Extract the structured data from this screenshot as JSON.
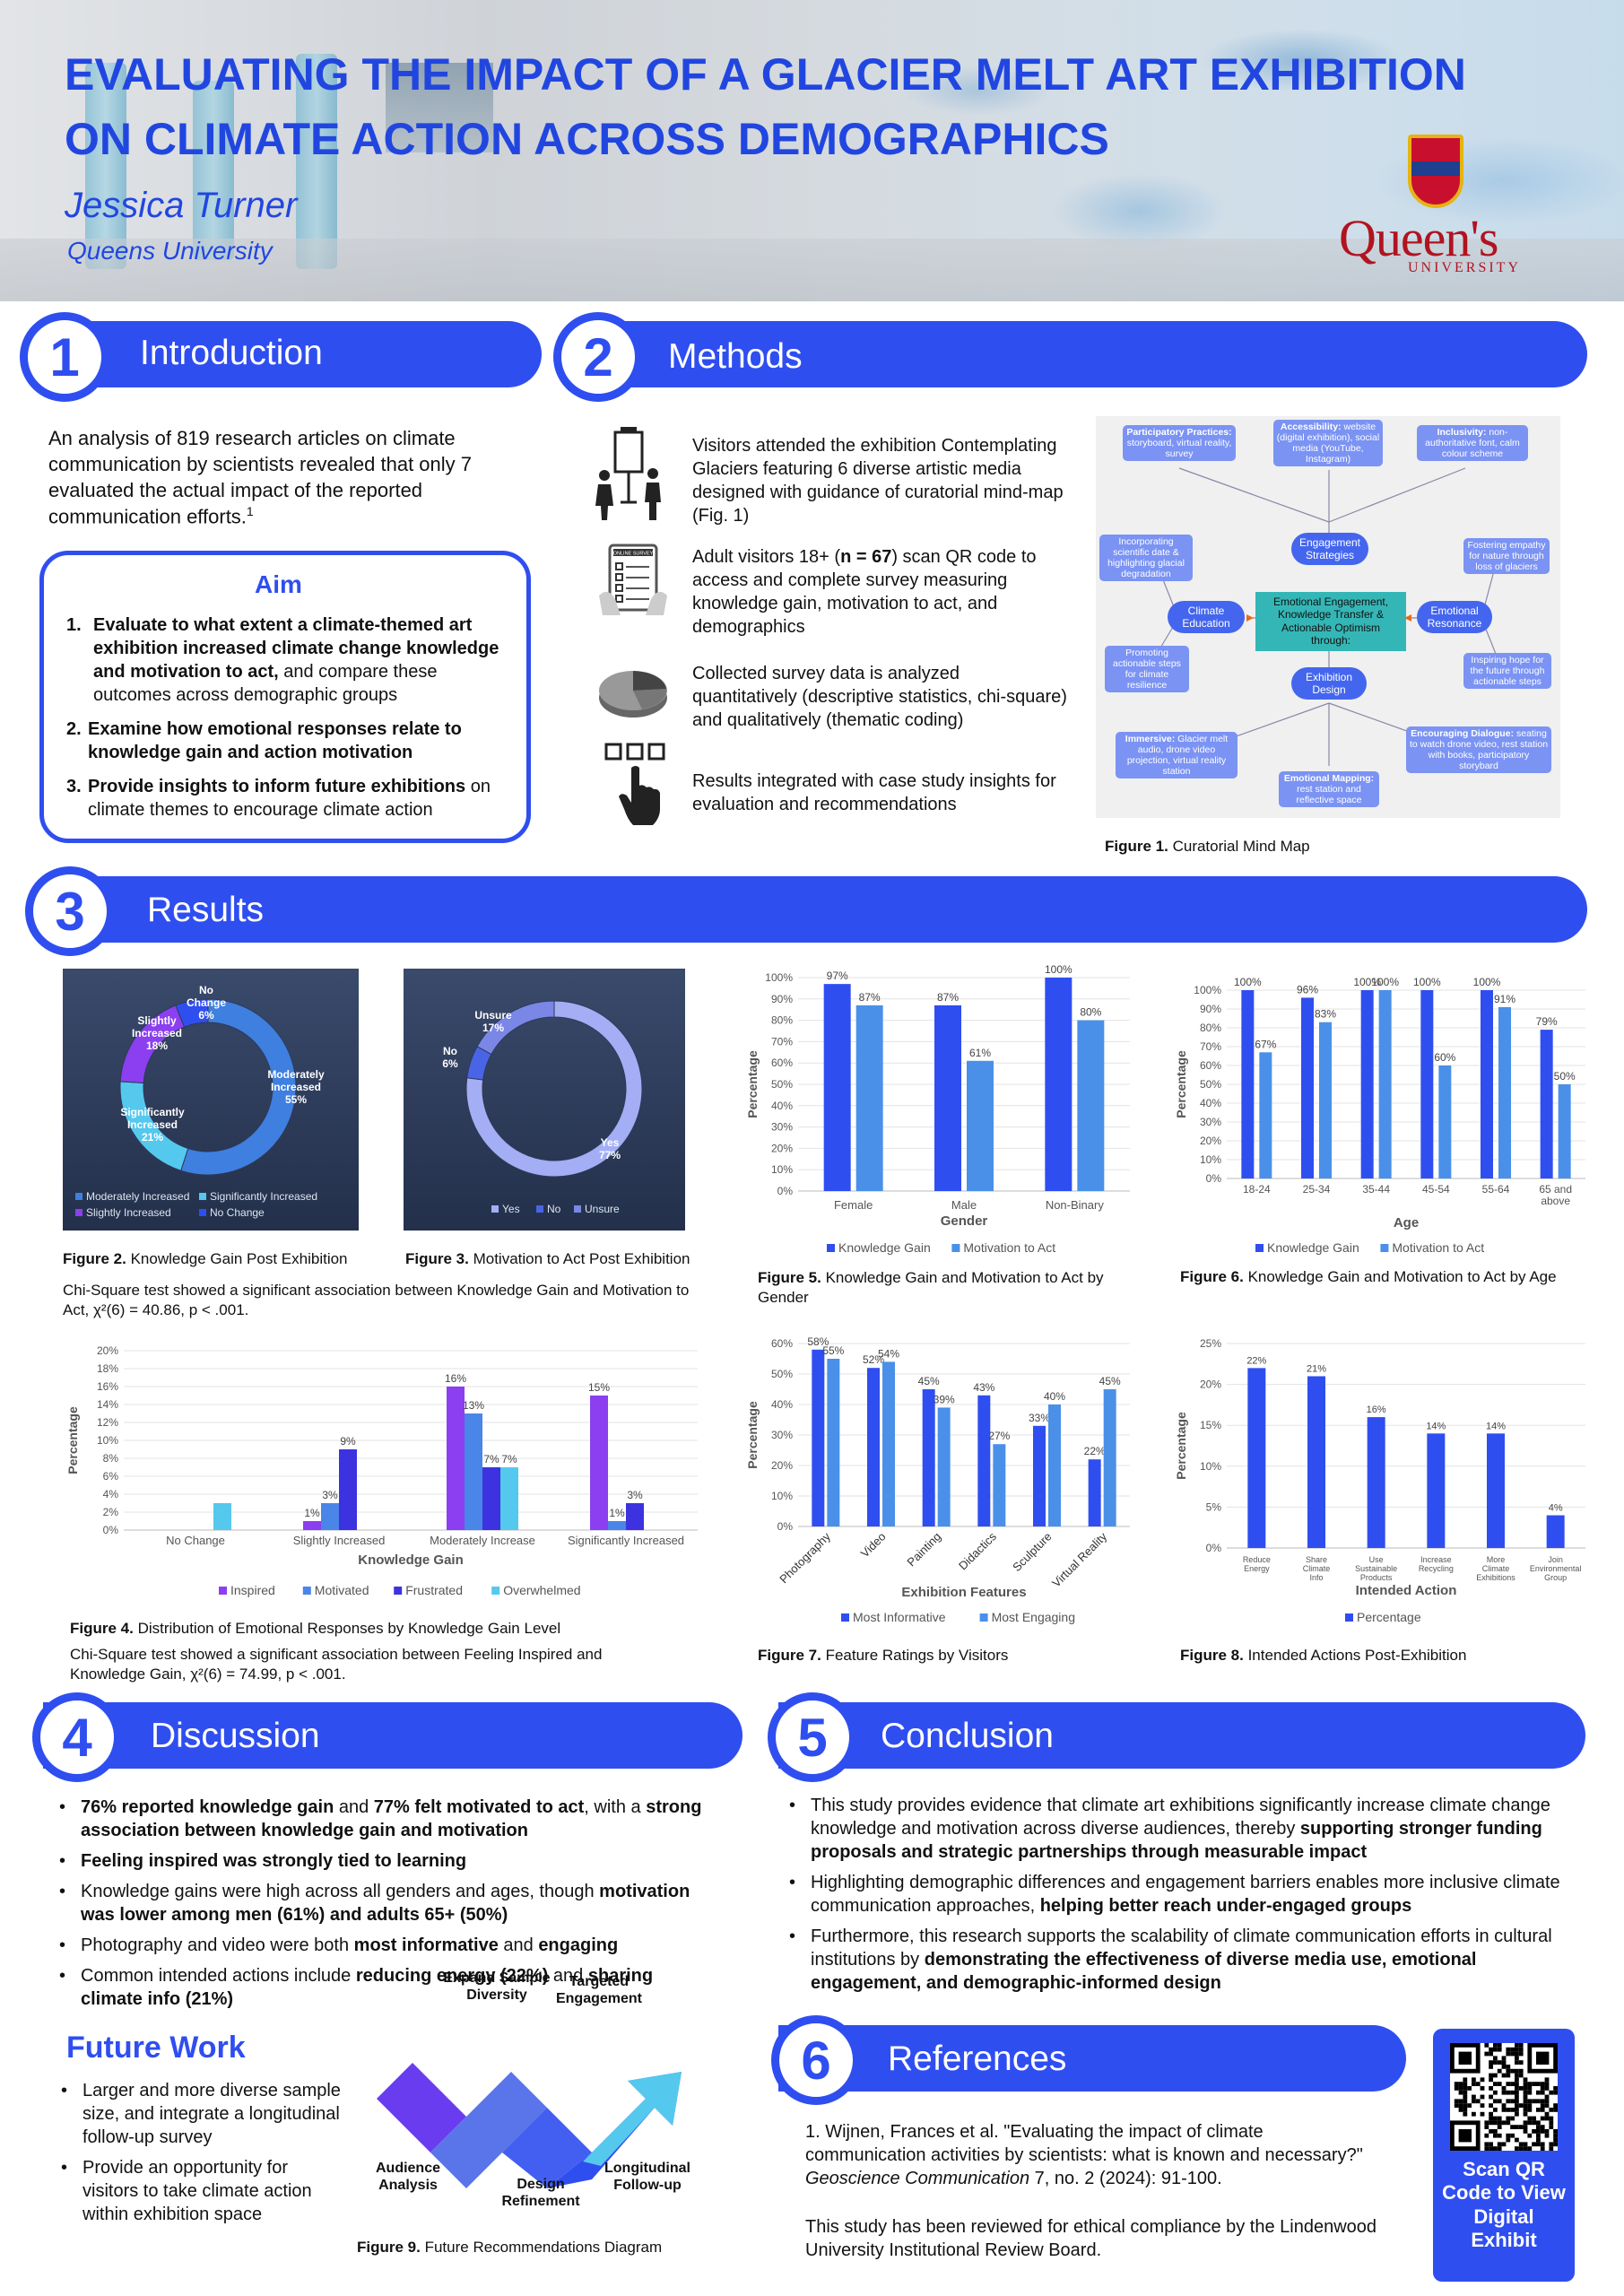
{
  "header": {
    "title_line1": "EVALUATING THE IMPACT OF A GLACIER MELT ART EXHIBITION",
    "title_line2": "ON CLIMATE ACTION ACROSS DEMOGRAPHICS",
    "author": "Jessica Turner",
    "affiliation": "Queens University",
    "logo_text": "Queen's",
    "logo_sub": "UNIVERSITY"
  },
  "sections": {
    "s1": {
      "num": "1",
      "label": "Introduction"
    },
    "s2": {
      "num": "2",
      "label": "Methods"
    },
    "s3": {
      "num": "3",
      "label": "Results"
    },
    "s4": {
      "num": "4",
      "label": "Discussion"
    },
    "s5": {
      "num": "5",
      "label": "Conclusion"
    },
    "s6": {
      "num": "6",
      "label": "References"
    }
  },
  "intro": {
    "text": "An analysis of 819 research articles on climate communication by scientists revealed that only 7 evaluated the actual impact of the reported communication efforts.",
    "sup": "1",
    "aim_title": "Aim",
    "aims": [
      {
        "n": "1.",
        "bold": "Evaluate to what extent a climate-themed art exhibition increased climate change knowledge and motivation to act,",
        "rest": " and compare these outcomes across demographic groups"
      },
      {
        "n": "2.",
        "bold": "Examine how emotional responses relate to knowledge gain and action motivation",
        "rest": ""
      },
      {
        "n": "3.",
        "bold": "Provide insights to inform future exhibitions",
        "rest": " on climate themes to encourage climate action"
      }
    ]
  },
  "methods": {
    "steps": [
      {
        "icon": "exhibition-visitors-icon",
        "text": "Visitors attended the exhibition Contemplating Glaciers featuring 6 diverse artistic media designed with guidance of curatorial mind-map (Fig. 1)"
      },
      {
        "icon": "online-survey-icon",
        "pre": "Adult visitors 18+ (",
        "bold": "n = 67",
        "post": ") scan QR code to access and complete survey measuring knowledge gain, motivation to act, and demographics",
        "survey_label": "ONLINE SURVEY"
      },
      {
        "icon": "pie-analysis-icon",
        "text": "Collected survey data is analyzed quantitatively (descriptive statistics, chi-square) and qualitatively (thematic coding)"
      },
      {
        "icon": "hand-pointer-icon",
        "text": "Results integrated with case study insights for evaluation and recommendations"
      }
    ],
    "fig1_num": "Figure 1.",
    "fig1_cap": " Curatorial Mind Map",
    "mindmap": {
      "center": "Emotional Engagement, Knowledge Transfer & Actionable Optimism through:",
      "engagement": "Engagement Strategies",
      "education": "Climate Education",
      "resonance": "Emotional Resonance",
      "design": "Exhibition Design",
      "participatory_t": "Participatory Practices:",
      "participatory": "storyboard, virtual reality, survey",
      "accessibility_t": "Accessibility:",
      "accessibility": "website (digital exhibition), social media (YouTube, Instagram)",
      "inclusivity_t": "Inclusivity:",
      "inclusivity": "non-authoritative font, calm colour scheme",
      "incorporating": "Incorporating scientific date & highlighting glacial degradation",
      "promoting": "Promoting actionable steps for climate resilience",
      "fostering": "Fostering empathy for nature through loss of glaciers",
      "inspiring": "Inspiring hope for the future through actionable steps",
      "immersive_t": "Immersive:",
      "immersive": "Glacier melt audio, drone video projection, virtual reality station",
      "mapping_t": "Emotional Mapping:",
      "mapping": "rest station and reflective space",
      "dialogue_t": "Encouraging Dialogue:",
      "dialogue": "seating to watch drone video, rest station with books, participatory storybard"
    }
  },
  "results": {
    "fig2": {
      "num": "Figure 2.",
      "cap": " Knowledge Gain Post Exhibition"
    },
    "fig3": {
      "num": "Figure 3.",
      "cap": " Motivation to Act Post Exhibition"
    },
    "chi1": "Chi-Square test showed a significant association between Knowledge Gain and Motivation to Act, χ²(6) = 40.86, p < .001.",
    "fig4": {
      "num": "Figure 4.",
      "cap": " Distribution of Emotional Responses by Knowledge Gain Level"
    },
    "chi2": "Chi-Square test showed a significant association between Feeling Inspired and Knowledge Gain, χ²(6) = 74.99, p < .001.",
    "fig5": {
      "num": "Figure 5.",
      "cap": " Knowledge Gain and Motivation to Act by Gender"
    },
    "fig6": {
      "num": "Figure 6.",
      "cap": " Knowledge Gain and Motivation to Act by Age"
    },
    "fig7": {
      "num": "Figure 7.",
      "cap": " Feature Ratings by Visitors"
    },
    "fig8": {
      "num": "Figure 8.",
      "cap": " Intended Actions Post-Exhibition"
    }
  },
  "chart_data": [
    {
      "id": "fig2",
      "type": "pie",
      "donut": true,
      "slices": [
        {
          "label": "Moderately Increased",
          "value": 55,
          "color": "#3f7fe0"
        },
        {
          "label": "Significantly Increased",
          "value": 21,
          "color": "#55c8ee"
        },
        {
          "label": "Slightly Increased",
          "value": 18,
          "color": "#8b3ff0"
        },
        {
          "label": "No Change",
          "value": 6,
          "color": "#2f4ef0"
        }
      ],
      "slice_labels": [
        {
          "name": "Moderately Increased",
          "pct": "55%"
        },
        {
          "name": "Significantly Increased",
          "pct": "21%"
        },
        {
          "name": "Slightly Increased",
          "pct": "18%"
        },
        {
          "name": "No Change",
          "pct": "6%"
        }
      ],
      "legend": [
        "Moderately Increased",
        "Significantly Increased",
        "Slightly Increased",
        "No Change"
      ]
    },
    {
      "id": "fig3",
      "type": "pie",
      "donut": true,
      "slices": [
        {
          "label": "Yes",
          "value": 77,
          "color": "#a3aef5"
        },
        {
          "label": "No",
          "value": 6,
          "color": "#4a64e6"
        },
        {
          "label": "Unsure",
          "value": 17,
          "color": "#7a87e6"
        }
      ],
      "slice_labels": [
        {
          "name": "Yes",
          "pct": "77%"
        },
        {
          "name": "No",
          "pct": "6%"
        },
        {
          "name": "Unsure",
          "pct": "17%"
        }
      ],
      "legend": [
        "Yes",
        "No",
        "Unsure"
      ]
    },
    {
      "id": "fig4",
      "type": "bar",
      "categories": [
        "No Change",
        "Slightly Increased",
        "Moderately Increase",
        "Significantly Increased"
      ],
      "series": [
        {
          "name": "Inspired",
          "values": [
            0,
            1,
            16,
            15
          ],
          "color": "#8b3ff0"
        },
        {
          "name": "Motivated",
          "values": [
            0,
            3,
            13,
            1
          ],
          "color": "#4a85e8"
        },
        {
          "name": "Frustrated",
          "values": [
            0,
            9,
            7,
            3
          ],
          "color": "#3d32e0"
        },
        {
          "name": "Overwhelmed",
          "values": [
            3,
            0,
            7,
            0
          ],
          "color": "#55c8ee"
        }
      ],
      "labels": [
        [
          "",
          "",
          "",
          ""
        ],
        [
          "1%",
          "3%",
          "9%",
          ""
        ],
        [
          "16%",
          "13%",
          "7%",
          "7%"
        ],
        [
          "15%",
          "1%",
          "3%",
          ""
        ]
      ],
      "first_label": "3%",
      "ylim": [
        0,
        20
      ],
      "yticks": [
        "0%",
        "2%",
        "4%",
        "6%",
        "8%",
        "10%",
        "12%",
        "14%",
        "16%",
        "18%",
        "20%"
      ],
      "xlabel": "Knowledge Gain",
      "ylabel": "Percentage"
    },
    {
      "id": "fig5",
      "type": "bar",
      "categories": [
        "Female",
        "Male",
        "Non-Binary"
      ],
      "series": [
        {
          "name": "Knowledge Gain",
          "values": [
            97,
            87,
            100
          ],
          "color": "#2f4ef0"
        },
        {
          "name": "Motivation to Act",
          "values": [
            87,
            61,
            80
          ],
          "color": "#4a90e8"
        }
      ],
      "labels": [
        [
          "97%",
          "87%"
        ],
        [
          "87%",
          "61%"
        ],
        [
          "100%",
          "80%"
        ]
      ],
      "ylim": [
        0,
        100
      ],
      "yticks": [
        "0%",
        "10%",
        "20%",
        "30%",
        "40%",
        "50%",
        "60%",
        "70%",
        "80%",
        "90%",
        "100%"
      ],
      "xlabel": "Gender",
      "ylabel": "Percentage"
    },
    {
      "id": "fig6",
      "type": "bar",
      "categories": [
        "18-24",
        "25-34",
        "35-44",
        "45-54",
        "55-64",
        "65 and above"
      ],
      "series": [
        {
          "name": "Knowledge Gain",
          "values": [
            100,
            96,
            100,
            100,
            100,
            79
          ],
          "color": "#2f4ef0"
        },
        {
          "name": "Motivation to Act",
          "values": [
            67,
            83,
            100,
            60,
            91,
            50
          ],
          "color": "#4a90e8"
        }
      ],
      "labels": [
        [
          "100%",
          "67%"
        ],
        [
          "96%",
          "83%"
        ],
        [
          "100%",
          "100%"
        ],
        [
          "100%",
          "60%"
        ],
        [
          "100%",
          "91%"
        ],
        [
          "79%",
          "50%"
        ]
      ],
      "ylim": [
        0,
        100
      ],
      "yticks": [
        "0%",
        "10%",
        "20%",
        "30%",
        "40%",
        "50%",
        "60%",
        "70%",
        "80%",
        "90%",
        "100%"
      ],
      "xlabel": "Age",
      "ylabel": "Percentage"
    },
    {
      "id": "fig7",
      "type": "bar",
      "categories": [
        "Photography",
        "Video",
        "Painting",
        "Didactics",
        "Sculpture",
        "Virtual Reality"
      ],
      "series": [
        {
          "name": "Most Informative",
          "values": [
            58,
            52,
            45,
            43,
            33,
            22
          ],
          "color": "#2f4ef0"
        },
        {
          "name": "Most Engaging",
          "values": [
            55,
            54,
            39,
            27,
            40,
            45
          ],
          "color": "#4a90e8"
        }
      ],
      "labels": [
        [
          "58%",
          "55%"
        ],
        [
          "52%",
          "54%"
        ],
        [
          "45%",
          "39%"
        ],
        [
          "43%",
          "27%"
        ],
        [
          "33%",
          "40%"
        ],
        [
          "22%",
          "45%"
        ]
      ],
      "ylim": [
        0,
        60
      ],
      "yticks": [
        "0%",
        "10%",
        "20%",
        "30%",
        "40%",
        "50%",
        "60%"
      ],
      "xlabel": "Exhibition Features",
      "ylabel": "Percentage"
    },
    {
      "id": "fig8",
      "type": "bar",
      "categories": [
        "Reduce Energy",
        "Share Climate Info",
        "Use Sustainable Products",
        "Increase Recycling",
        "More Climate Exhibitions",
        "Join Environmental Group"
      ],
      "series": [
        {
          "name": "Percentage",
          "values": [
            22,
            21,
            16,
            14,
            14,
            4
          ],
          "color": "#2f4ef0"
        }
      ],
      "labels": [
        [
          "22%"
        ],
        [
          "21%"
        ],
        [
          "16%"
        ],
        [
          "14%"
        ],
        [
          "14%"
        ],
        [
          "4%"
        ]
      ],
      "ylim": [
        0,
        25
      ],
      "yticks": [
        "0%",
        "5%",
        "10%",
        "15%",
        "20%",
        "25%"
      ],
      "xlabel": "Intended Action",
      "ylabel": "Percentage"
    }
  ],
  "discussion": {
    "items": [
      [
        {
          "b": "76% reported knowledge gain"
        },
        {
          "t": " and "
        },
        {
          "b": "77% felt motivated to act"
        },
        {
          "t": ", with a "
        },
        {
          "b": "strong association between knowledge gain and motivation"
        }
      ],
      [
        {
          "b": "Feeling inspired was strongly tied to learning"
        }
      ],
      [
        {
          "t": "Knowledge gains were high across all genders and ages, though "
        },
        {
          "b": "motivation was lower among men (61%) and adults 65+ (50%)"
        }
      ],
      [
        {
          "t": "Photography and video were both "
        },
        {
          "b": "most informative"
        },
        {
          "t": " and "
        },
        {
          "b": "engaging"
        }
      ],
      [
        {
          "t": "Common intended actions include "
        },
        {
          "b": "reducing energy (22%)"
        },
        {
          "t": " and "
        },
        {
          "b": "sharing climate info (21%)"
        }
      ]
    ],
    "future_title": "Future Work",
    "future": [
      "Larger and more diverse sample size, and integrate a longitudinal follow-up survey",
      "Provide an opportunity for visitors to take climate action within exhibition space"
    ],
    "diagram": {
      "expand": "Expand Sample Diversity",
      "targeted": "Targeted Engagement",
      "audience": "Audience Analysis",
      "design": "Design Refinement",
      "longitudinal": "Longitudinal Follow-up"
    },
    "fig9_num": "Figure 9.",
    "fig9_cap": " Future Recommendations Diagram"
  },
  "conclusion": {
    "items": [
      [
        {
          "t": "This study provides evidence that climate art exhibitions significantly increase climate change knowledge and motivation across diverse audiences, thereby "
        },
        {
          "b": "supporting stronger funding proposals and strategic partnerships through measurable impact"
        }
      ],
      [
        {
          "t": "Highlighting demographic differences and engagement barriers enables more inclusive climate communication approaches, "
        },
        {
          "b": "helping better reach under-engaged groups"
        }
      ],
      [
        {
          "t": "Furthermore, this research supports the scalability of climate communication efforts in cultural institutions by "
        },
        {
          "b": "demonstrating the effectiveness of diverse media use, emotional engagement, and demographic-informed design"
        }
      ]
    ]
  },
  "references": {
    "ref_pre": "1. Wijnen, Frances et al. \"Evaluating the impact of climate communication activities by scientists: what is known and necessary?\" ",
    "ref_journal": "Geoscience Communication",
    "ref_post": " 7, no. 2 (2024): 91-100.",
    "ethics": "This study has been reviewed for ethical compliance by the Lindenwood University Institutional Review Board.",
    "qr_text": "Scan QR Code to View Digital Exhibit"
  }
}
